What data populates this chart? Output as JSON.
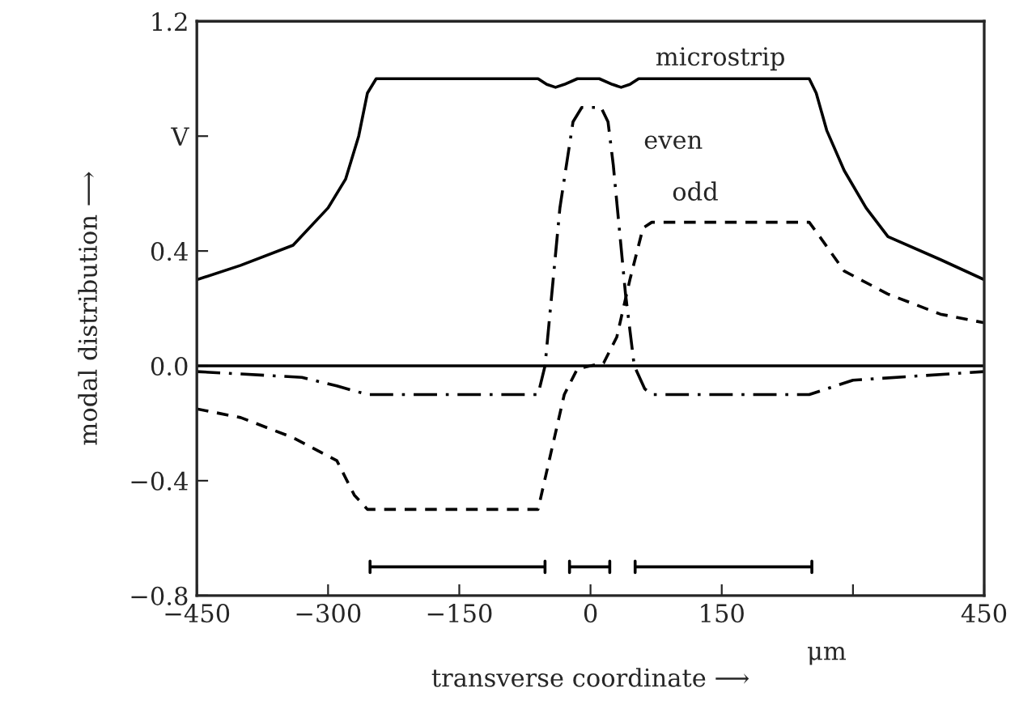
{
  "chart_data": {
    "type": "line",
    "xlabel": "transverse coordinate ⟶",
    "ylabel": "modal distribution ⟶",
    "xlim": [
      -450,
      450
    ],
    "ylim": [
      -0.8,
      1.2
    ],
    "xticks": [
      {
        "value": -450,
        "label": "−450"
      },
      {
        "value": -300,
        "label": "−300"
      },
      {
        "value": -150,
        "label": "−150"
      },
      0,
      150,
      {
        "value": 300,
        "label": null
      },
      450
    ],
    "yticks": [
      {
        "value": -0.8,
        "label": "−0.8"
      },
      {
        "value": -0.4,
        "label": "−0.4"
      },
      {
        "value": 0,
        "label": "0.0"
      },
      0.4,
      {
        "value": 0.8,
        "label": "V"
      },
      1.2
    ],
    "grid": false,
    "legend": false,
    "series": [
      {
        "color": "#000000",
        "line_style": "solid",
        "x": [
          -450,
          -400,
          -340,
          -300,
          -280,
          -265,
          -255,
          -245,
          -60,
          -50,
          -40,
          -30,
          -15,
          10,
          25,
          35,
          45,
          55,
          250,
          258,
          270,
          290,
          315,
          340,
          400,
          450
        ],
        "values": [
          0.3,
          0.35,
          0.42,
          0.55,
          0.65,
          0.8,
          0.95,
          1.0,
          1.0,
          0.98,
          0.97,
          0.98,
          1.0,
          1.0,
          0.98,
          0.97,
          0.98,
          1.0,
          1.0,
          0.95,
          0.82,
          0.68,
          0.55,
          0.45,
          0.37,
          0.3
        ]
      },
      {
        "color": "#000000",
        "line_style": "dashdot",
        "x": [
          -450,
          -330,
          -290,
          -255,
          -60,
          -52,
          -35,
          -20,
          -10,
          0,
          12,
          20,
          26,
          40,
          50,
          62,
          70,
          250,
          300,
          450
        ],
        "values": [
          -0.02,
          -0.04,
          -0.07,
          -0.1,
          -0.1,
          0.0,
          0.55,
          0.85,
          0.9,
          0.9,
          0.9,
          0.85,
          0.7,
          0.25,
          0.0,
          -0.08,
          -0.1,
          -0.1,
          -0.05,
          -0.02
        ]
      },
      {
        "color": "#000000",
        "line_style": "dashed",
        "x": [
          -450,
          -400,
          -340,
          -290,
          -270,
          -255,
          -60,
          -45,
          -30,
          -15,
          0,
          15,
          30,
          45,
          60,
          70,
          250,
          262,
          290,
          340,
          400,
          450
        ],
        "values": [
          -0.15,
          -0.18,
          -0.25,
          -0.33,
          -0.45,
          -0.5,
          -0.5,
          -0.3,
          -0.1,
          -0.01,
          0.0,
          0.01,
          0.1,
          0.3,
          0.48,
          0.5,
          0.5,
          0.45,
          0.33,
          0.25,
          0.18,
          0.15
        ]
      },
      {
        "color": "#000000",
        "line_style": "solid",
        "x": [
          -252,
          -252,
          -252,
          -52,
          -52,
          -52
        ],
        "values": [
          -0.68,
          -0.72,
          -0.7,
          -0.7,
          -0.68,
          -0.72
        ]
      },
      {
        "color": "#000000",
        "line_style": "solid",
        "x": [
          -24,
          -24,
          -24,
          22,
          22,
          22
        ],
        "values": [
          -0.68,
          -0.72,
          -0.7,
          -0.7,
          -0.68,
          -0.72
        ]
      },
      {
        "color": "#000000",
        "line_style": "solid",
        "x": [
          51,
          51,
          51,
          253,
          253,
          253
        ],
        "values": [
          -0.68,
          -0.72,
          -0.7,
          -0.7,
          -0.68,
          -0.72
        ]
      }
    ],
    "ref_lines": [
      {
        "axis": "y",
        "value": 0,
        "color": "#000000",
        "line_style": "solid"
      }
    ],
    "annotations": [
      "microstrip",
      "even",
      "odd",
      "μm"
    ]
  }
}
